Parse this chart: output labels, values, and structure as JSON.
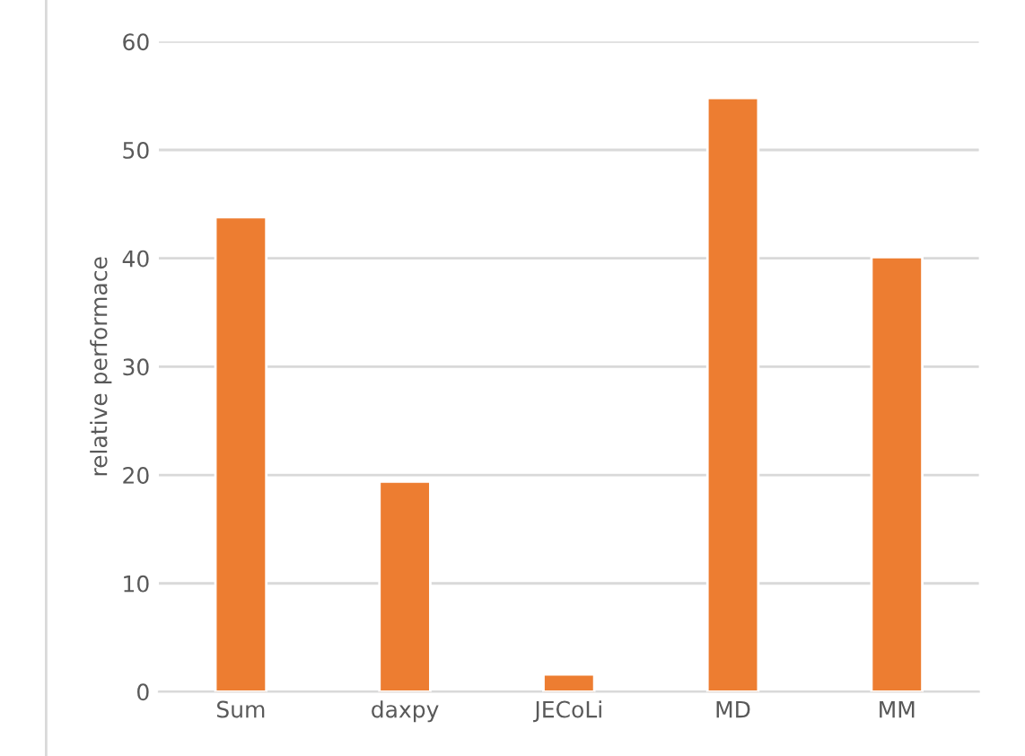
{
  "chart_data": {
    "type": "bar",
    "ylabel": "relative performace",
    "categories": [
      "Sum",
      "daxpy",
      "JECoLi",
      "MD",
      "MM"
    ],
    "values": [
      43.8,
      19.4,
      1.6,
      54.8,
      40.1
    ],
    "color": "#ed7d31",
    "ylim": [
      0,
      60
    ],
    "yticks": [
      0,
      10,
      20,
      30,
      40,
      50,
      60
    ],
    "grid": "y"
  }
}
